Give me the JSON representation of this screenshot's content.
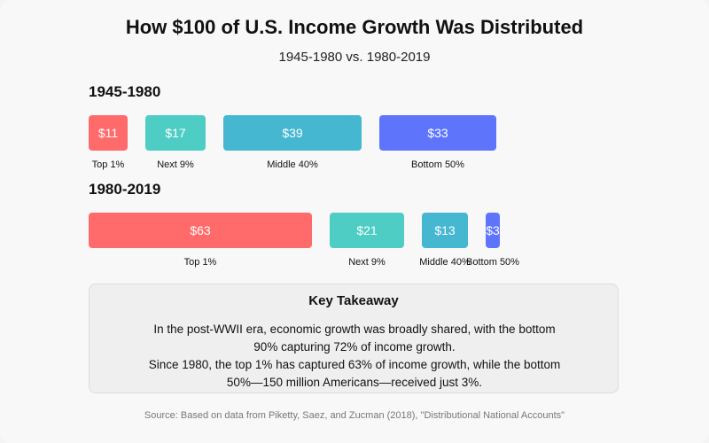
{
  "chart_data": {
    "type": "bar",
    "title": "How $100 of U.S. Income Growth Was Distributed",
    "subtitle": "1945-1980 vs. 1980-2019",
    "unit": "$ per $100 of income growth",
    "colors": [
      "#ff6b6b",
      "#4ecdc4",
      "#45b7d1",
      "#5e75fb"
    ],
    "periods": [
      {
        "name": "1945-1980",
        "categories": [
          "Top 1%",
          "Next 9%",
          "Middle 40%",
          "Bottom 50%"
        ],
        "values": [
          11,
          17,
          39,
          33
        ],
        "value_labels": [
          "$11",
          "$17",
          "$39",
          "$33"
        ]
      },
      {
        "name": "1980-2019",
        "categories": [
          "Top 1%",
          "Next 9%",
          "Middle 40%",
          "Bottom 50%"
        ],
        "values": [
          63,
          21,
          13,
          3
        ],
        "value_labels": [
          "$63",
          "$21",
          "$13",
          "$3"
        ]
      }
    ]
  },
  "takeaway": {
    "heading": "Key Takeaway",
    "lines": [
      "In the post-WWII era, economic growth was broadly shared, with the bottom 90% capturing 72% of income growth.",
      "Since 1980, the top 1% has captured 63% of income growth, while the bottom 50%—150 million Americans—received just 3%."
    ]
  },
  "source": "Source: Based on data from Piketty, Saez, and Zucman (2018), \"Distributional National Accounts\""
}
